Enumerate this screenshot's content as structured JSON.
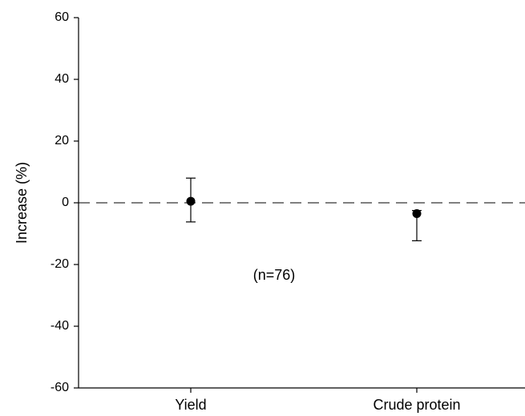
{
  "chart_data": {
    "type": "scatter",
    "title": "",
    "xlabel": "",
    "ylabel": "Increase (%)",
    "categories": [
      "Yield",
      "Crude protein"
    ],
    "series": [
      {
        "values": [
          0.5,
          -3.5
        ],
        "error_low": [
          -6.2,
          -12.3
        ],
        "error_high": [
          8.0,
          -2.5
        ]
      }
    ],
    "ylim": [
      -60,
      60
    ],
    "yticks": [
      "60",
      "40",
      "20",
      "0",
      "-20",
      "-40",
      "-60"
    ],
    "reference_line": {
      "y": 0,
      "style": "dashed"
    },
    "annotation": "(n=76)",
    "grid": false,
    "legend": "none",
    "colors": {
      "marker": "#000000",
      "axis": "#000000"
    }
  }
}
